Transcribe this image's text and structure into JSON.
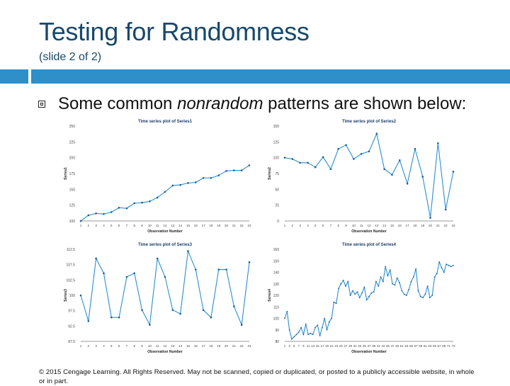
{
  "slide": {
    "title": "Testing for Randomness",
    "subtitle": "(slide 2 of 2)",
    "bullet_pre": "Some common ",
    "bullet_em": "nonrandom",
    "bullet_post": " patterns are shown below:",
    "footer": "© 2015 Cengage Learning. All Rights Reserved. May not be scanned, copied or duplicated, or posted to a publicly accessible website, in whole or in part."
  },
  "colors": {
    "title": "#17496b",
    "accent_band": "#2e8fc9",
    "line": "#2a8fd1",
    "marker": "#1d5f97"
  },
  "chart_data": [
    {
      "type": "line",
      "title": "Time series plot of Series1",
      "xlabel": "Observation Number",
      "ylabel": "Series1",
      "x": [
        1,
        2,
        3,
        4,
        5,
        6,
        7,
        8,
        9,
        10,
        11,
        12,
        13,
        14,
        15,
        16,
        17,
        18,
        19,
        20,
        21,
        22,
        23
      ],
      "series": [
        {
          "values": [
            100,
            109,
            112,
            111,
            114,
            121,
            120,
            128,
            129,
            131,
            137,
            146,
            156,
            157,
            160,
            161,
            168,
            168,
            172,
            179,
            180,
            180,
            188
          ]
        }
      ],
      "ylim": [
        100,
        250
      ],
      "yticks": [
        "100",
        "125",
        "150",
        "175",
        "200",
        "225",
        "250"
      ]
    },
    {
      "type": "line",
      "title": "Time series plot of Series2",
      "xlabel": "Observation Number",
      "ylabel": "Series2",
      "x": [
        1,
        2,
        3,
        4,
        5,
        6,
        7,
        8,
        9,
        10,
        11,
        12,
        13,
        14,
        15,
        16,
        17,
        18,
        19,
        20,
        21,
        22,
        23
      ],
      "series": [
        {
          "values": [
            100,
            98,
            92,
            92,
            85,
            101,
            82,
            114,
            120,
            98,
            106,
            110,
            138,
            82,
            73,
            96,
            59,
            114,
            70,
            5,
            123,
            18,
            78
          ]
        }
      ],
      "ylim": [
        0,
        150
      ],
      "yticks": [
        "0",
        "25",
        "50",
        "75",
        "100",
        "125",
        "150"
      ]
    },
    {
      "type": "line",
      "title": "Time series plot of Series3",
      "xlabel": "Observation Number",
      "ylabel": "Series3",
      "x": [
        1,
        2,
        3,
        4,
        5,
        6,
        7,
        8,
        9,
        10,
        11,
        12,
        13,
        14,
        15,
        16,
        17,
        18,
        19,
        20,
        21,
        22,
        23
      ],
      "series": [
        {
          "values": [
            100,
            93,
            110,
            106,
            94,
            94,
            105,
            106,
            96,
            92,
            110,
            105,
            96,
            95,
            112,
            107,
            96,
            94,
            107,
            107,
            97,
            92,
            109
          ]
        }
      ],
      "ylim": [
        87.5,
        112.5
      ],
      "yticks": [
        "87.5",
        "92.5",
        "97.5",
        "100",
        "102.5",
        "107.5",
        "112.5"
      ]
    },
    {
      "type": "line",
      "title": "Time series plot of Series4",
      "xlabel": "Observation Number",
      "ylabel": "Series4",
      "x": [
        1,
        2,
        3,
        4,
        5,
        6,
        7,
        8,
        9,
        10,
        11,
        12,
        13,
        14,
        15,
        16,
        17,
        18,
        19,
        20,
        21,
        22,
        23,
        24,
        25,
        26,
        27,
        28,
        29,
        30,
        31,
        32,
        33,
        34,
        35,
        36,
        37,
        38,
        39,
        40,
        41,
        42,
        43,
        44,
        45,
        46,
        47,
        48,
        49,
        50,
        51,
        52,
        53,
        54,
        55,
        56,
        57,
        58,
        59,
        60,
        61,
        62,
        63,
        64,
        65,
        66,
        67,
        68,
        69,
        70,
        71,
        72,
        73
      ],
      "series": [
        {
          "values": [
            100,
            106,
            90,
            82,
            84,
            86,
            88,
            92,
            86,
            95,
            86,
            87,
            86,
            92,
            94,
            85,
            92,
            100,
            90,
            97,
            100,
            114,
            113,
            126,
            130,
            133,
            128,
            132,
            120,
            124,
            121,
            123,
            118,
            122,
            127,
            116,
            119,
            122,
            123,
            132,
            128,
            136,
            132,
            145,
            137,
            142,
            130,
            129,
            135,
            131,
            124,
            121,
            120,
            125,
            132,
            136,
            143,
            124,
            119,
            118,
            121,
            128,
            118,
            120,
            136,
            139,
            149,
            144,
            140,
            147,
            146,
            145,
            146
          ]
        }
      ],
      "ylim": [
        80,
        160
      ],
      "yticks": [
        "80",
        "90",
        "100",
        "110",
        "120",
        "130",
        "140",
        "150",
        "160"
      ]
    }
  ]
}
